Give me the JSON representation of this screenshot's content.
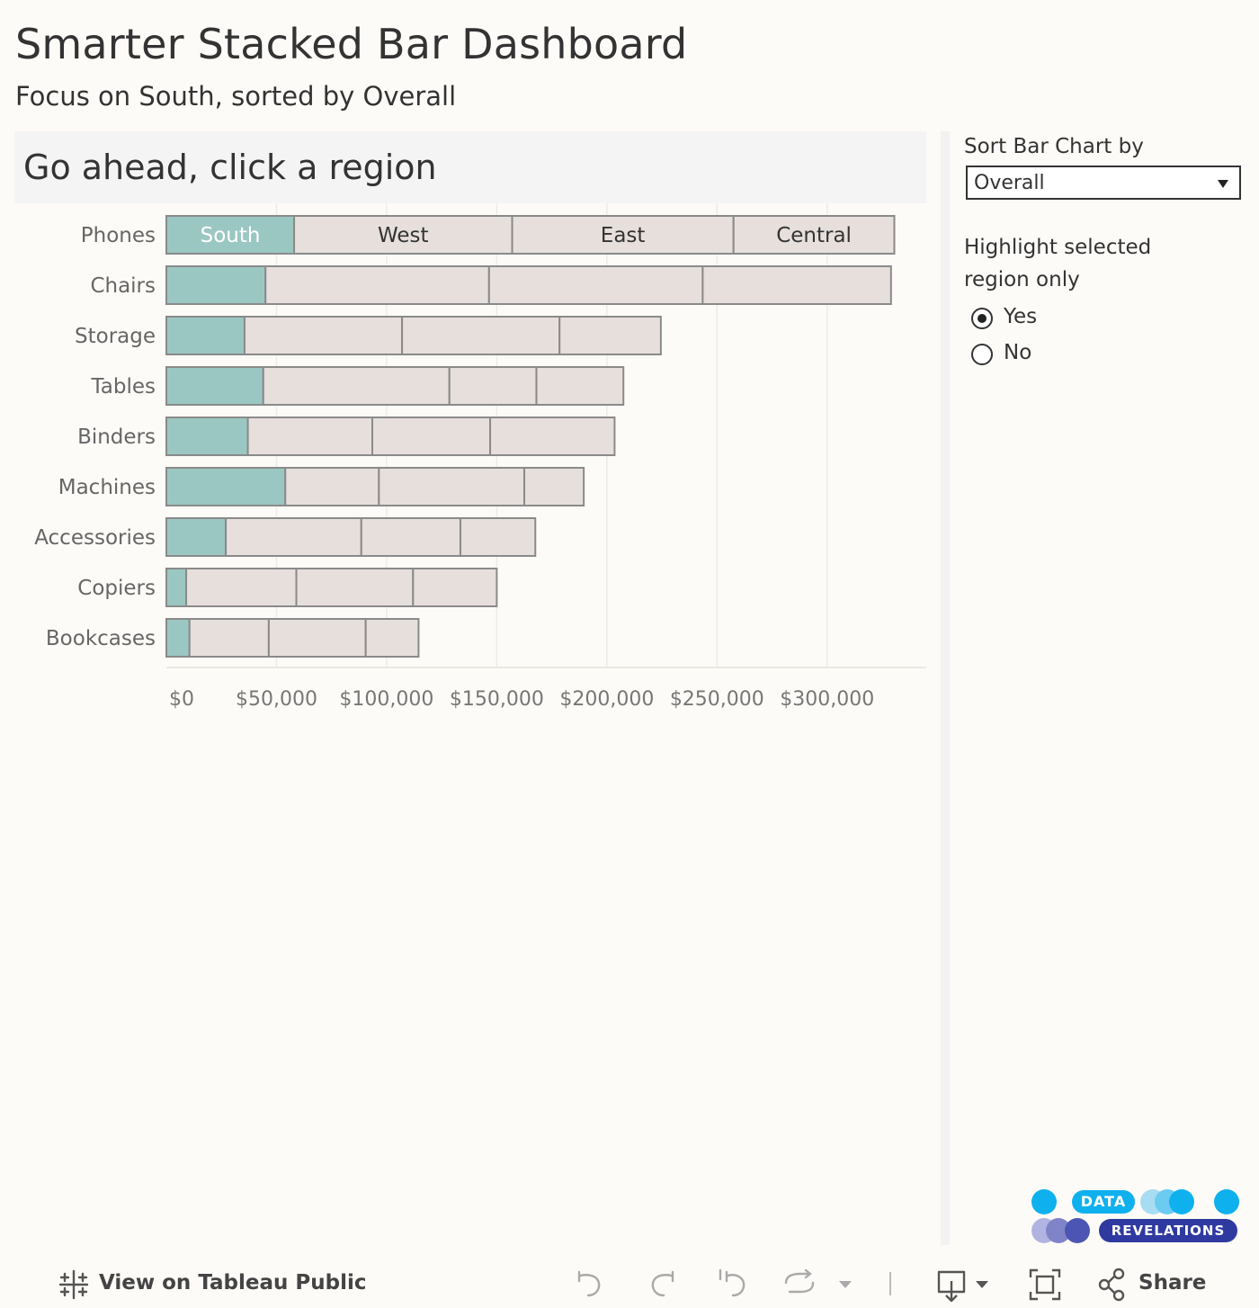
{
  "dashboard": {
    "title": "Smarter Stacked Bar Dashboard",
    "subtitle": "Focus on South, sorted by Overall",
    "panel_header": "Go ahead, click a region"
  },
  "controls": {
    "sort_label": "Sort Bar Chart by",
    "sort_value": "Overall",
    "highlight_label_line1": "Highlight selected",
    "highlight_label_line2": "region only",
    "radio_options": [
      {
        "label": "Yes",
        "selected": true
      },
      {
        "label": "No",
        "selected": false
      }
    ]
  },
  "logo": {
    "line1": "DATA",
    "line2": "REVELATIONS"
  },
  "toolbar": {
    "view_on_tableau": "View on Tableau Public",
    "share": "Share"
  },
  "colors": {
    "highlight": "#9bc7c2",
    "bar_fill": "#e6dfdc",
    "bar_stroke": "#8a8a8a",
    "background": "#fdfbf7"
  },
  "chart_data": {
    "type": "bar",
    "orientation": "horizontal-stacked",
    "categories": [
      "Phones",
      "Chairs",
      "Storage",
      "Tables",
      "Binders",
      "Machines",
      "Accessories",
      "Copiers",
      "Bookcases"
    ],
    "series": [
      {
        "name": "South",
        "values": [
          58000,
          45000,
          35500,
          44000,
          37000,
          54000,
          27000,
          9000,
          10500
        ],
        "highlight": true
      },
      {
        "name": "West",
        "values": [
          99000,
          101500,
          71500,
          84500,
          56500,
          42500,
          61500,
          50000,
          36000
        ]
      },
      {
        "name": "East",
        "values": [
          100500,
          97000,
          71500,
          39500,
          53500,
          66000,
          45000,
          53000,
          44000
        ]
      },
      {
        "name": "Central",
        "values": [
          73000,
          85500,
          46000,
          39500,
          56500,
          27000,
          34000,
          38000,
          24000
        ]
      }
    ],
    "x_ticks": [
      "$0",
      "$50,000",
      "$100,000",
      "$150,000",
      "$200,000",
      "$250,000",
      "$300,000"
    ],
    "x_tick_values": [
      0,
      50000,
      100000,
      150000,
      200000,
      250000,
      300000
    ],
    "xlim": [
      0,
      345000
    ],
    "grid": true,
    "legend": "none"
  }
}
